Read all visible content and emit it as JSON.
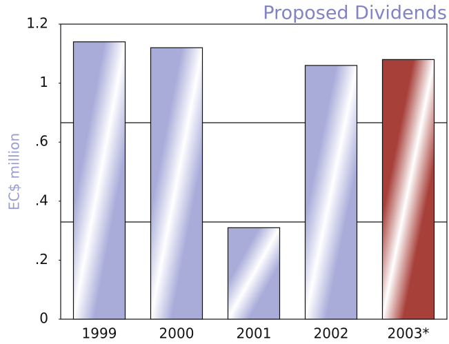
{
  "chart_data": {
    "type": "bar",
    "title": "Proposed Dividends",
    "y_label": "EC$ million",
    "categories": [
      "1999",
      "2000",
      "2001",
      "2002",
      "2003*"
    ],
    "values": [
      1.14,
      1.12,
      0.31,
      1.06,
      1.08
    ],
    "colors": [
      "#a9acd9",
      "#a9acd9",
      "#a9acd9",
      "#a9acd9",
      "#a8403a"
    ],
    "ylim": [
      0,
      1.2
    ],
    "yticks": [
      0,
      {
        "value": 0.2,
        "label": ".2"
      },
      {
        "value": 0.4,
        "label": ".4"
      },
      {
        "value": 0.6,
        "label": ".6"
      },
      1,
      1.2
    ]
  }
}
